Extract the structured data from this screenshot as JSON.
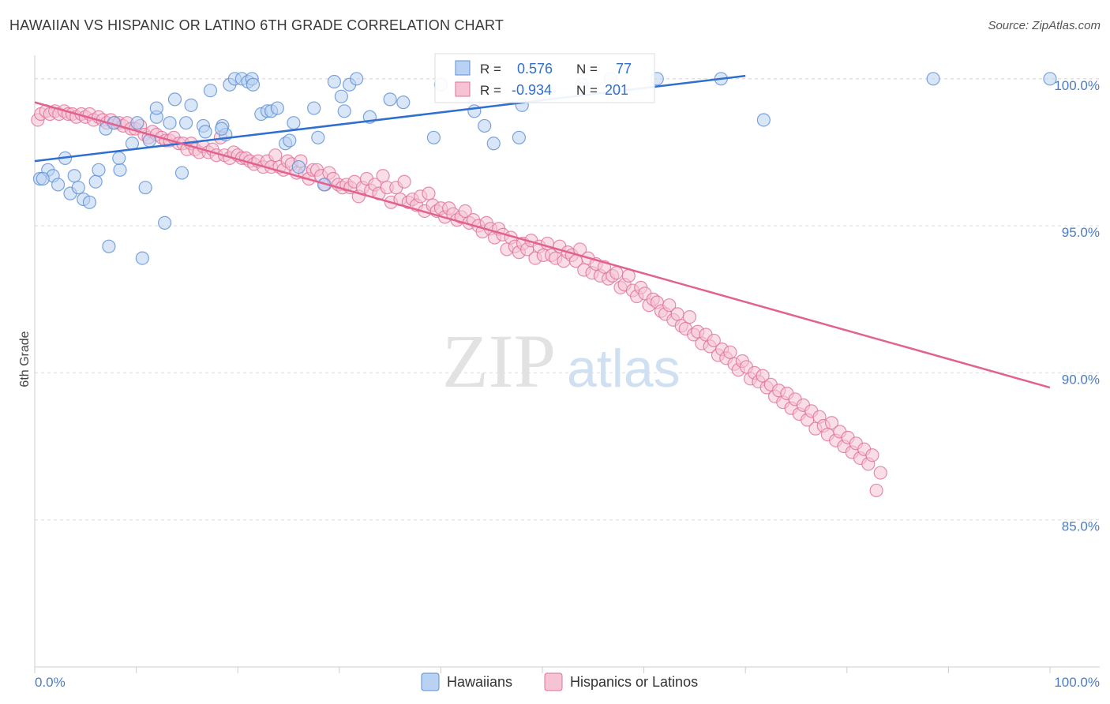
{
  "header": {
    "title": "HAWAIIAN VS HISPANIC OR LATINO 6TH GRADE CORRELATION CHART",
    "source": "Source: ZipAtlas.com"
  },
  "watermark": {
    "zip": "ZIP",
    "atlas": "atlas"
  },
  "colors": {
    "blue": "#5b8fd6",
    "blue_fill": "#b9d1f2",
    "blue_line": "#2f6fcf",
    "pink": "#e0709a",
    "pink_fill": "#f6c3d4",
    "pink_line": "#e2628f",
    "tick_label": "#4a7cc9",
    "grid": "#dcdcdc"
  },
  "legend": {
    "r_label": "R =",
    "n_label": "N =",
    "rows": [
      {
        "r": "0.576",
        "n": "77"
      },
      {
        "r": "-0.934",
        "n": "201"
      }
    ]
  },
  "chart_data": {
    "type": "scatter",
    "title": "HAWAIIAN VS HISPANIC OR LATINO 6TH GRADE CORRELATION CHART",
    "xlabel": "",
    "ylabel": "6th Grade",
    "xlim": [
      0,
      100
    ],
    "ylim": [
      80,
      100.8
    ],
    "x_tick_labels": [
      {
        "value": 0,
        "label": "0.0%"
      },
      {
        "value": 100,
        "label": "100.0%"
      }
    ],
    "y_tick_labels": [
      {
        "value": 100,
        "label": "100.0%"
      },
      {
        "value": 95,
        "label": "95.0%"
      },
      {
        "value": 90,
        "label": "90.0%"
      },
      {
        "value": 85,
        "label": "85.0%"
      }
    ],
    "grid": true,
    "legend_position": "bottom-center",
    "series": [
      {
        "name": "Hawaiians",
        "r": 0.576,
        "n": 77,
        "trend": [
          [
            0,
            97.2
          ],
          [
            70,
            100.1
          ]
        ],
        "points": [
          [
            0.5,
            96.6
          ],
          [
            1.3,
            96.9
          ],
          [
            1.8,
            96.7
          ],
          [
            2.3,
            96.4
          ],
          [
            0.8,
            96.6
          ],
          [
            3.0,
            97.3
          ],
          [
            3.5,
            96.1
          ],
          [
            3.9,
            96.7
          ],
          [
            4.3,
            96.3
          ],
          [
            4.8,
            95.9
          ],
          [
            5.4,
            95.8
          ],
          [
            6.0,
            96.5
          ],
          [
            6.3,
            96.9
          ],
          [
            7.0,
            98.3
          ],
          [
            7.8,
            98.5
          ],
          [
            7.3,
            94.3
          ],
          [
            8.4,
            96.9
          ],
          [
            8.3,
            97.3
          ],
          [
            9.6,
            97.8
          ],
          [
            10.1,
            98.5
          ],
          [
            10.6,
            93.9
          ],
          [
            10.9,
            96.3
          ],
          [
            11.3,
            97.9
          ],
          [
            12.0,
            98.7
          ],
          [
            12.0,
            99.0
          ],
          [
            12.8,
            95.1
          ],
          [
            13.3,
            98.5
          ],
          [
            13.8,
            99.3
          ],
          [
            14.5,
            96.8
          ],
          [
            14.9,
            98.5
          ],
          [
            15.4,
            99.1
          ],
          [
            16.6,
            98.4
          ],
          [
            16.8,
            98.2
          ],
          [
            17.3,
            99.6
          ],
          [
            18.5,
            98.4
          ],
          [
            18.8,
            98.1
          ],
          [
            19.2,
            99.8
          ],
          [
            19.7,
            100.0
          ],
          [
            20.4,
            100.0
          ],
          [
            21.0,
            99.9
          ],
          [
            21.4,
            100.0
          ],
          [
            21.5,
            99.8
          ],
          [
            22.3,
            98.8
          ],
          [
            22.9,
            98.9
          ],
          [
            23.3,
            98.9
          ],
          [
            23.9,
            99.0
          ],
          [
            24.7,
            97.8
          ],
          [
            25.1,
            97.9
          ],
          [
            25.5,
            98.5
          ],
          [
            26.0,
            97.0
          ],
          [
            27.5,
            99.0
          ],
          [
            27.9,
            98.0
          ],
          [
            28.5,
            96.4
          ],
          [
            29.5,
            99.9
          ],
          [
            30.2,
            99.4
          ],
          [
            30.5,
            98.9
          ],
          [
            31.0,
            99.8
          ],
          [
            31.7,
            100.0
          ],
          [
            33.0,
            98.7
          ],
          [
            35.0,
            99.3
          ],
          [
            36.3,
            99.2
          ],
          [
            39.3,
            98.0
          ],
          [
            40.0,
            99.8
          ],
          [
            42.0,
            99.6
          ],
          [
            43.3,
            98.9
          ],
          [
            44.3,
            98.4
          ],
          [
            45.2,
            97.8
          ],
          [
            47.7,
            98.0
          ],
          [
            48.0,
            99.1
          ],
          [
            53.9,
            99.8
          ],
          [
            56.7,
            100.0
          ],
          [
            61.3,
            100.0
          ],
          [
            67.6,
            100.0
          ],
          [
            71.8,
            98.6
          ],
          [
            88.5,
            100.0
          ],
          [
            100.0,
            100.0
          ],
          [
            18.4,
            98.3
          ]
        ]
      },
      {
        "name": "Hispanics or Latinos",
        "r": -0.934,
        "n": 201,
        "trend": [
          [
            0,
            99.2
          ],
          [
            100,
            89.5
          ]
        ],
        "points": [
          [
            0.3,
            98.6
          ],
          [
            0.6,
            98.8
          ],
          [
            1.1,
            98.9
          ],
          [
            1.5,
            98.8
          ],
          [
            2.0,
            98.9
          ],
          [
            2.4,
            98.8
          ],
          [
            2.9,
            98.9
          ],
          [
            3.3,
            98.8
          ],
          [
            3.7,
            98.8
          ],
          [
            4.1,
            98.7
          ],
          [
            4.6,
            98.8
          ],
          [
            5.0,
            98.7
          ],
          [
            5.4,
            98.8
          ],
          [
            5.8,
            98.6
          ],
          [
            6.3,
            98.7
          ],
          [
            6.7,
            98.6
          ],
          [
            7.1,
            98.5
          ],
          [
            7.5,
            98.6
          ],
          [
            7.9,
            98.5
          ],
          [
            8.3,
            98.5
          ],
          [
            8.7,
            98.4
          ],
          [
            9.1,
            98.5
          ],
          [
            9.5,
            98.3
          ],
          [
            9.9,
            98.3
          ],
          [
            10.4,
            98.4
          ],
          [
            10.8,
            98.1
          ],
          [
            11.2,
            98.0
          ],
          [
            11.6,
            98.2
          ],
          [
            12.0,
            98.1
          ],
          [
            12.5,
            98.0
          ],
          [
            12.9,
            97.9
          ],
          [
            13.3,
            97.9
          ],
          [
            13.7,
            98.0
          ],
          [
            14.2,
            97.8
          ],
          [
            14.6,
            97.8
          ],
          [
            15.0,
            97.6
          ],
          [
            15.4,
            97.8
          ],
          [
            15.8,
            97.6
          ],
          [
            16.2,
            97.5
          ],
          [
            16.6,
            97.7
          ],
          [
            17.1,
            97.5
          ],
          [
            17.5,
            97.6
          ],
          [
            17.9,
            97.4
          ],
          [
            18.3,
            98.0
          ],
          [
            18.7,
            97.4
          ],
          [
            19.2,
            97.3
          ],
          [
            19.6,
            97.5
          ],
          [
            20.0,
            97.4
          ],
          [
            20.4,
            97.3
          ],
          [
            20.8,
            97.3
          ],
          [
            21.2,
            97.2
          ],
          [
            21.6,
            97.1
          ],
          [
            22.0,
            97.2
          ],
          [
            22.5,
            97.0
          ],
          [
            22.9,
            97.2
          ],
          [
            23.3,
            97.0
          ],
          [
            23.7,
            97.4
          ],
          [
            24.1,
            97.0
          ],
          [
            24.5,
            96.9
          ],
          [
            24.9,
            97.2
          ],
          [
            25.3,
            97.1
          ],
          [
            25.8,
            96.8
          ],
          [
            26.2,
            97.2
          ],
          [
            26.6,
            96.8
          ],
          [
            27.0,
            96.6
          ],
          [
            27.4,
            96.9
          ],
          [
            27.8,
            96.9
          ],
          [
            28.2,
            96.7
          ],
          [
            28.6,
            96.4
          ],
          [
            29.0,
            96.8
          ],
          [
            29.4,
            96.6
          ],
          [
            29.9,
            96.4
          ],
          [
            30.3,
            96.3
          ],
          [
            30.7,
            96.4
          ],
          [
            31.1,
            96.3
          ],
          [
            31.5,
            96.5
          ],
          [
            31.9,
            96.0
          ],
          [
            32.3,
            96.3
          ],
          [
            32.7,
            96.6
          ],
          [
            33.1,
            96.2
          ],
          [
            33.5,
            96.4
          ],
          [
            33.9,
            96.1
          ],
          [
            34.3,
            96.7
          ],
          [
            34.7,
            96.3
          ],
          [
            35.1,
            95.8
          ],
          [
            35.6,
            96.3
          ],
          [
            36.0,
            95.9
          ],
          [
            36.4,
            96.5
          ],
          [
            36.8,
            95.8
          ],
          [
            37.2,
            95.9
          ],
          [
            37.6,
            95.7
          ],
          [
            38.0,
            96.0
          ],
          [
            38.4,
            95.5
          ],
          [
            38.8,
            96.1
          ],
          [
            39.2,
            95.7
          ],
          [
            39.6,
            95.5
          ],
          [
            40.0,
            95.6
          ],
          [
            40.4,
            95.3
          ],
          [
            40.8,
            95.6
          ],
          [
            41.2,
            95.4
          ],
          [
            41.6,
            95.2
          ],
          [
            42.0,
            95.3
          ],
          [
            42.4,
            95.5
          ],
          [
            42.8,
            95.1
          ],
          [
            43.2,
            95.2
          ],
          [
            43.7,
            95.0
          ],
          [
            44.1,
            94.8
          ],
          [
            44.5,
            95.1
          ],
          [
            44.9,
            94.9
          ],
          [
            45.3,
            94.6
          ],
          [
            45.7,
            94.9
          ],
          [
            46.1,
            94.7
          ],
          [
            46.5,
            94.2
          ],
          [
            46.9,
            94.6
          ],
          [
            47.3,
            94.3
          ],
          [
            47.7,
            94.1
          ],
          [
            48.1,
            94.4
          ],
          [
            48.5,
            94.2
          ],
          [
            48.9,
            94.5
          ],
          [
            49.3,
            93.9
          ],
          [
            49.7,
            94.3
          ],
          [
            50.1,
            94.0
          ],
          [
            50.5,
            94.4
          ],
          [
            50.9,
            94.0
          ],
          [
            51.3,
            93.9
          ],
          [
            51.7,
            94.3
          ],
          [
            52.1,
            93.8
          ],
          [
            52.5,
            94.1
          ],
          [
            52.9,
            94.0
          ],
          [
            53.3,
            93.8
          ],
          [
            53.7,
            94.2
          ],
          [
            54.1,
            93.5
          ],
          [
            54.5,
            93.9
          ],
          [
            54.9,
            93.4
          ],
          [
            55.3,
            93.7
          ],
          [
            55.7,
            93.3
          ],
          [
            56.1,
            93.6
          ],
          [
            56.5,
            93.2
          ],
          [
            56.9,
            93.3
          ],
          [
            57.3,
            93.4
          ],
          [
            57.7,
            92.9
          ],
          [
            58.1,
            93.0
          ],
          [
            58.5,
            93.3
          ],
          [
            58.9,
            92.8
          ],
          [
            59.3,
            92.6
          ],
          [
            59.7,
            92.9
          ],
          [
            60.1,
            92.7
          ],
          [
            60.5,
            92.3
          ],
          [
            60.9,
            92.5
          ],
          [
            61.3,
            92.4
          ],
          [
            61.7,
            92.1
          ],
          [
            62.1,
            92.0
          ],
          [
            62.5,
            92.3
          ],
          [
            62.9,
            91.8
          ],
          [
            63.3,
            92.0
          ],
          [
            63.7,
            91.6
          ],
          [
            64.1,
            91.5
          ],
          [
            64.5,
            91.9
          ],
          [
            64.9,
            91.3
          ],
          [
            65.3,
            91.4
          ],
          [
            65.7,
            91.0
          ],
          [
            66.1,
            91.3
          ],
          [
            66.5,
            90.9
          ],
          [
            66.9,
            91.1
          ],
          [
            67.3,
            90.6
          ],
          [
            67.7,
            90.8
          ],
          [
            68.1,
            90.5
          ],
          [
            68.5,
            90.7
          ],
          [
            68.9,
            90.3
          ],
          [
            69.3,
            90.1
          ],
          [
            69.7,
            90.4
          ],
          [
            70.1,
            90.2
          ],
          [
            70.5,
            89.8
          ],
          [
            70.9,
            90.0
          ],
          [
            71.3,
            89.7
          ],
          [
            71.7,
            89.9
          ],
          [
            72.1,
            89.5
          ],
          [
            72.5,
            89.6
          ],
          [
            72.9,
            89.2
          ],
          [
            73.3,
            89.4
          ],
          [
            73.7,
            89.0
          ],
          [
            74.1,
            89.3
          ],
          [
            74.5,
            88.8
          ],
          [
            74.9,
            89.1
          ],
          [
            75.3,
            88.6
          ],
          [
            75.7,
            88.9
          ],
          [
            76.1,
            88.4
          ],
          [
            76.5,
            88.7
          ],
          [
            76.9,
            88.1
          ],
          [
            77.3,
            88.5
          ],
          [
            77.7,
            88.2
          ],
          [
            78.1,
            87.9
          ],
          [
            78.5,
            88.3
          ],
          [
            78.9,
            87.7
          ],
          [
            79.3,
            88.0
          ],
          [
            79.7,
            87.5
          ],
          [
            80.1,
            87.8
          ],
          [
            80.5,
            87.3
          ],
          [
            80.9,
            87.6
          ],
          [
            81.3,
            87.1
          ],
          [
            81.7,
            87.4
          ],
          [
            82.1,
            86.9
          ],
          [
            82.5,
            87.2
          ],
          [
            82.9,
            86.0
          ],
          [
            83.3,
            86.6
          ]
        ]
      }
    ]
  }
}
